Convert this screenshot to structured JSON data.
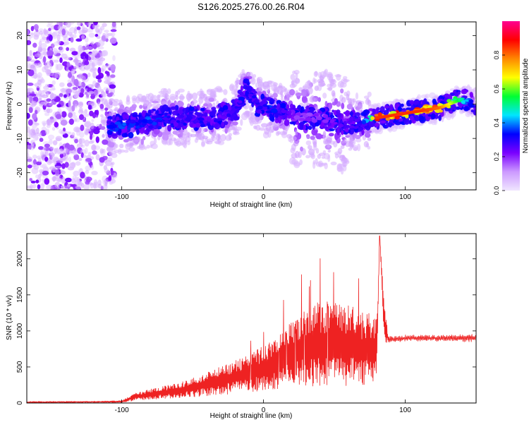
{
  "page_title": "S126.2025.276.00.26.R04",
  "chart_data": [
    {
      "type": "heatmap",
      "name": "spectrogram",
      "xlabel": "Height of straight line (km)",
      "ylabel": "Frequency (Hz)",
      "xlim": [
        -167,
        150
      ],
      "ylim": [
        -25,
        24
      ],
      "xticks": [
        -100,
        0,
        100
      ],
      "yticks": [
        -20,
        -10,
        0,
        10,
        20
      ],
      "colorbar": {
        "label": "Normalized spectral amplitude",
        "range": [
          0,
          1
        ],
        "ticks": [
          "0.0",
          "0.2",
          "0.4",
          "0.6",
          "0.8"
        ],
        "colors": [
          "#f0e6ff",
          "#cc99ff",
          "#7a00ff",
          "#0000ff",
          "#00e5ff",
          "#00ff33",
          "#ffff00",
          "#ff8800",
          "#ff0000",
          "#ff0090"
        ]
      },
      "ridge": {
        "x": [
          -110,
          -90,
          -70,
          -50,
          -35,
          -20,
          -12,
          -5,
          5,
          15,
          25,
          40,
          55,
          70,
          80,
          95,
          110,
          125,
          140,
          150
        ],
        "freq": [
          -6.5,
          -6,
          -4,
          -4,
          -4,
          -2,
          5,
          0,
          -1.5,
          -2.5,
          -4,
          -4,
          -5.5,
          -5.5,
          -4,
          -3,
          -2,
          -1,
          1.5,
          0
        ],
        "amplitude": [
          0.35,
          0.4,
          0.35,
          0.3,
          0.3,
          0.3,
          0.35,
          0.3,
          0.35,
          0.3,
          0.2,
          0.2,
          0.25,
          0.3,
          0.85,
          0.85,
          0.85,
          0.8,
          0.5,
          0.3
        ]
      }
    },
    {
      "type": "line",
      "name": "snr",
      "xlabel": "Height of straight line (km)",
      "ylabel": "SNR (10 * v/v)",
      "xlim": [
        -167,
        150
      ],
      "ylim": [
        0,
        2350
      ],
      "xticks": [
        -100,
        0,
        100
      ],
      "yticks": [
        0,
        500,
        1000,
        1500,
        2000
      ],
      "color": "#ee2222",
      "series": [
        {
          "name": "SNR",
          "x": [
            -167,
            -120,
            -100,
            -90,
            -80,
            -60,
            -40,
            -20,
            0,
            10,
            20,
            30,
            40,
            50,
            60,
            70,
            80,
            82,
            85,
            88,
            100,
            120,
            140,
            150
          ],
          "y": [
            12,
            15,
            20,
            90,
            120,
            170,
            260,
            360,
            480,
            580,
            680,
            760,
            820,
            810,
            800,
            750,
            780,
            2320,
            1150,
            880,
            900,
            900,
            900,
            900
          ],
          "spread": [
            8,
            8,
            12,
            45,
            60,
            90,
            140,
            190,
            260,
            320,
            380,
            450,
            500,
            480,
            470,
            420,
            380,
            0,
            250,
            40,
            30,
            30,
            35,
            45
          ]
        }
      ]
    }
  ]
}
